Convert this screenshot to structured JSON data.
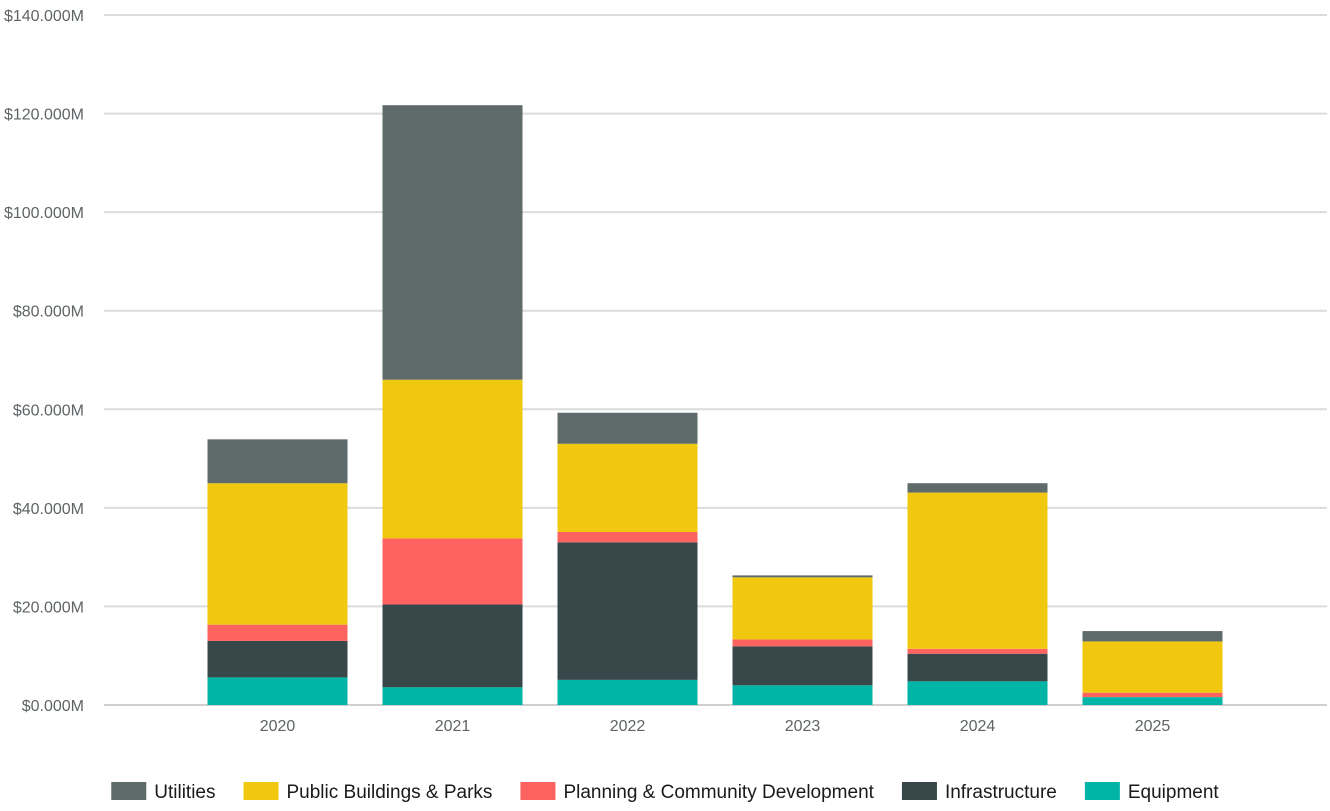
{
  "chart_data": {
    "type": "bar",
    "stacked": true,
    "title": "",
    "xlabel": "",
    "ylabel": "",
    "categories": [
      "2020",
      "2021",
      "2022",
      "2023",
      "2024",
      "2025"
    ],
    "ylim": [
      0,
      140
    ],
    "yticks": [
      0,
      20,
      40,
      60,
      80,
      100,
      120,
      140
    ],
    "ytick_labels": [
      "$0.000M",
      "$20.000M",
      "$40.000M",
      "$60.000M",
      "$80.000M",
      "$100.000M",
      "$120.000M",
      "$140.000M"
    ],
    "grid": true,
    "legend_position": "bottom",
    "series": [
      {
        "name": "Equipment",
        "color": "#00b5a6",
        "values": [
          5.6,
          3.6,
          5.1,
          4.0,
          4.8,
          1.6
        ]
      },
      {
        "name": "Infrastructure",
        "color": "#37474a",
        "values": [
          7.4,
          16.8,
          27.9,
          7.9,
          5.6,
          0.0
        ]
      },
      {
        "name": "Planning & Community Development",
        "color": "#ff6360",
        "values": [
          3.3,
          13.4,
          2.1,
          1.4,
          1.0,
          0.9
        ]
      },
      {
        "name": "Public Buildings & Parks",
        "color": "#f0c80f",
        "values": [
          28.7,
          32.2,
          17.9,
          12.6,
          31.7,
          10.4
        ]
      },
      {
        "name": "Utilities",
        "color": "#5f6b6b",
        "values": [
          8.9,
          55.7,
          6.3,
          0.4,
          1.9,
          2.1
        ]
      }
    ],
    "legend_order": [
      "Utilities",
      "Public Buildings & Parks",
      "Planning & Community Development",
      "Infrastructure",
      "Equipment"
    ]
  },
  "colors": {
    "grid": "#dcdcdc",
    "baseline": "#cfcfcf",
    "tick_text": "#5f6466"
  }
}
